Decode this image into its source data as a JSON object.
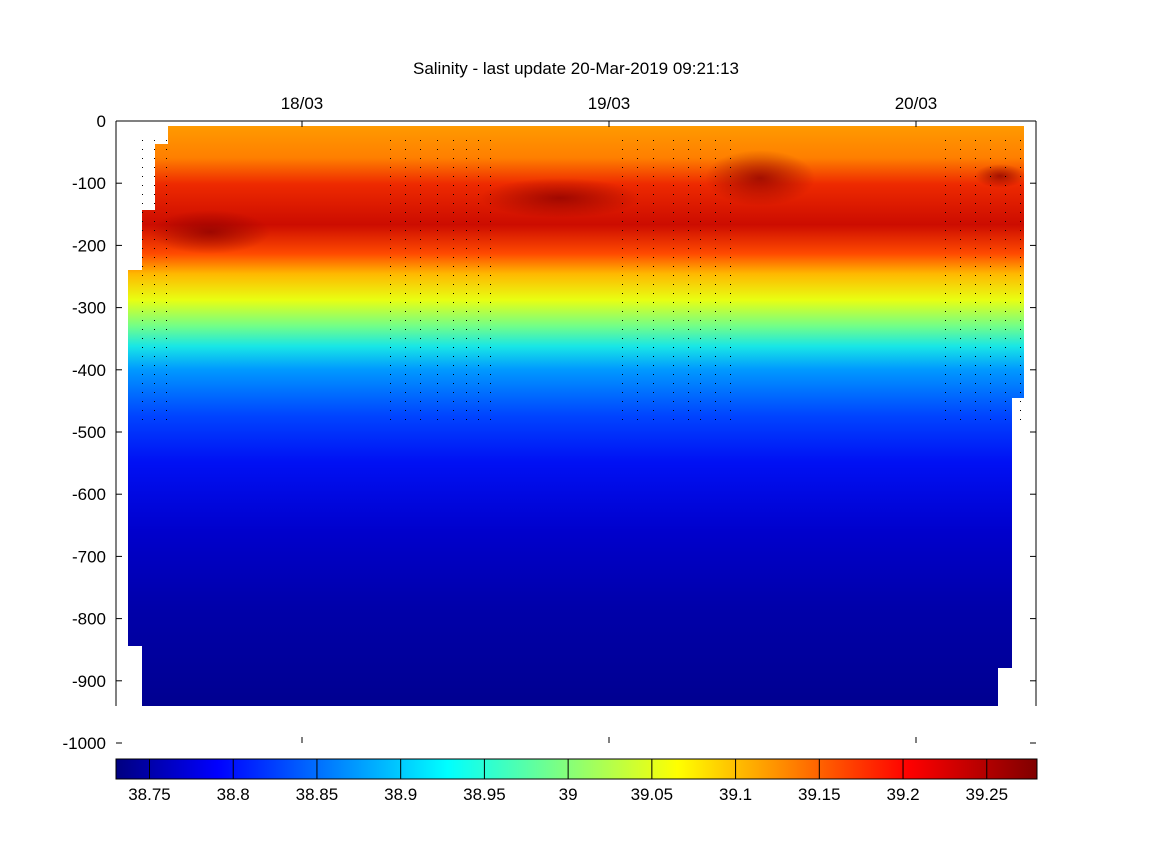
{
  "chart_data": {
    "type": "heatmap",
    "title": "Salinity - last update 20-Mar-2019 09:21:13",
    "xlabel": "",
    "ylabel": "",
    "x_ticks": [
      "18/03",
      "19/03",
      "20/03"
    ],
    "y_ticks": [
      0,
      -100,
      -200,
      -300,
      -400,
      -500,
      -600,
      -700,
      -800,
      -900,
      -1000
    ],
    "ylim": [
      -1000,
      0
    ],
    "colorbar": {
      "min": 38.73,
      "max": 39.28,
      "ticks": [
        38.75,
        38.8,
        38.85,
        38.9,
        38.95,
        39,
        39.05,
        39.1,
        39.15,
        39.2,
        39.25
      ],
      "colormap": "jet"
    },
    "depth_profile": [
      {
        "depth": -20,
        "value": 39.14
      },
      {
        "depth": -60,
        "value": 39.16
      },
      {
        "depth": -100,
        "value": 39.22
      },
      {
        "depth": -150,
        "value": 39.23
      },
      {
        "depth": -200,
        "value": 39.2
      },
      {
        "depth": -250,
        "value": 39.08
      },
      {
        "depth": -300,
        "value": 39.0
      },
      {
        "depth": -350,
        "value": 38.94
      },
      {
        "depth": -400,
        "value": 38.89
      },
      {
        "depth": -450,
        "value": 38.86
      },
      {
        "depth": -500,
        "value": 38.84
      },
      {
        "depth": -600,
        "value": 38.81
      },
      {
        "depth": -700,
        "value": 38.79
      },
      {
        "depth": -800,
        "value": 38.765
      },
      {
        "depth": -900,
        "value": 38.75
      },
      {
        "depth": -945,
        "value": 38.745
      }
    ]
  }
}
